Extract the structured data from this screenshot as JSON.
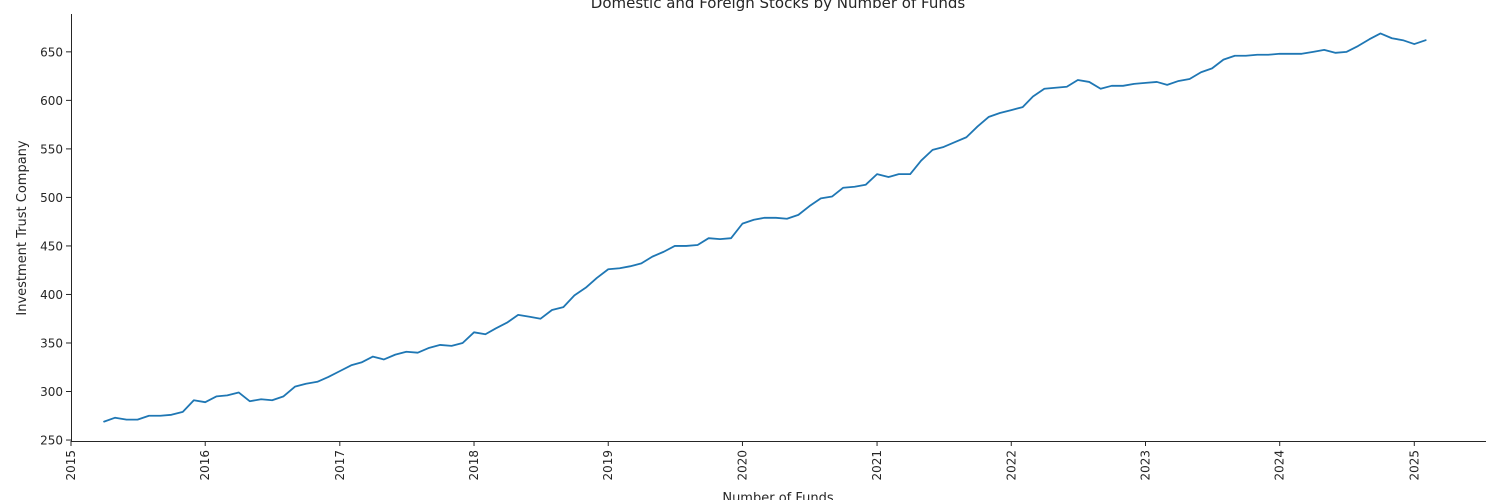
{
  "chart_data": {
    "type": "line",
    "title": "Domestic and Foreign Stocks by Number of Funds",
    "xlabel": "Number of Funds",
    "ylabel": "Investment Trust Company",
    "xlim": [
      "2015-01-01",
      "2025-07-15"
    ],
    "ylim": [
      249,
      689
    ],
    "x_ticks": [
      "2015-01-01",
      "2016-01-01",
      "2017-01-01",
      "2018-01-01",
      "2019-01-01",
      "2020-01-01",
      "2021-01-01",
      "2022-01-01",
      "2023-01-01",
      "2024-01-01",
      "2025-01-01"
    ],
    "x_tick_labels": [
      "2015",
      "2016",
      "2017",
      "2018",
      "2019",
      "2020",
      "2021",
      "2022",
      "2023",
      "2024",
      "2025"
    ],
    "y_ticks": [
      250,
      300,
      350,
      400,
      450,
      500,
      550,
      600,
      650
    ],
    "y_tick_labels": [
      "250",
      "300",
      "350",
      "400",
      "450",
      "500",
      "550",
      "600",
      "650"
    ],
    "grid": false,
    "legend": "none",
    "line_color": "#1f77b4",
    "series": [
      {
        "x": [
          "2015-04-01",
          "2015-05-01",
          "2015-06-01",
          "2015-07-01",
          "2015-08-01",
          "2015-09-01",
          "2015-10-01",
          "2015-11-01",
          "2015-12-01",
          "2016-01-01",
          "2016-02-01",
          "2016-03-01",
          "2016-04-01",
          "2016-05-01",
          "2016-06-01",
          "2016-07-01",
          "2016-08-01",
          "2016-09-01",
          "2016-10-01",
          "2016-11-01",
          "2016-12-01",
          "2017-01-01",
          "2017-02-01",
          "2017-03-01",
          "2017-04-01",
          "2017-05-01",
          "2017-06-01",
          "2017-07-01",
          "2017-08-01",
          "2017-09-01",
          "2017-10-01",
          "2017-11-01",
          "2017-12-01",
          "2018-01-01",
          "2018-02-01",
          "2018-03-01",
          "2018-04-01",
          "2018-05-01",
          "2018-06-01",
          "2018-07-01",
          "2018-08-01",
          "2018-09-01",
          "2018-10-01",
          "2018-11-01",
          "2018-12-01",
          "2019-01-01",
          "2019-02-01",
          "2019-03-01",
          "2019-04-01",
          "2019-05-01",
          "2019-06-01",
          "2019-07-01",
          "2019-08-01",
          "2019-09-01",
          "2019-10-01",
          "2019-11-01",
          "2019-12-01",
          "2020-01-01",
          "2020-02-01",
          "2020-03-01",
          "2020-04-01",
          "2020-05-01",
          "2020-06-01",
          "2020-07-01",
          "2020-08-01",
          "2020-09-01",
          "2020-10-01",
          "2020-11-01",
          "2020-12-01",
          "2021-01-01",
          "2021-02-01",
          "2021-03-01",
          "2021-04-01",
          "2021-05-01",
          "2021-06-01",
          "2021-07-01",
          "2021-08-01",
          "2021-09-01",
          "2021-10-01",
          "2021-11-01",
          "2021-12-01",
          "2022-01-01",
          "2022-02-01",
          "2022-03-01",
          "2022-04-01",
          "2022-05-01",
          "2022-06-01",
          "2022-07-01",
          "2022-08-01",
          "2022-09-01",
          "2022-10-01",
          "2022-11-01",
          "2022-12-01",
          "2023-01-01",
          "2023-02-01",
          "2023-03-01",
          "2023-04-01",
          "2023-05-01",
          "2023-06-01",
          "2023-07-01",
          "2023-08-01",
          "2023-09-01",
          "2023-10-01",
          "2023-11-01",
          "2023-12-01",
          "2024-01-01",
          "2024-02-01",
          "2024-03-01",
          "2024-04-01",
          "2024-05-01",
          "2024-06-01",
          "2024-07-01",
          "2024-08-01",
          "2024-09-01",
          "2024-10-01",
          "2024-11-01",
          "2024-12-01",
          "2025-01-01",
          "2025-02-01"
        ],
        "values": [
          269,
          273,
          271,
          271,
          275,
          275,
          276,
          279,
          291,
          289,
          295,
          296,
          299,
          290,
          292,
          291,
          295,
          305,
          308,
          310,
          315,
          321,
          327,
          330,
          336,
          333,
          338,
          341,
          340,
          345,
          348,
          347,
          350,
          361,
          359,
          365,
          371,
          379,
          377,
          375,
          384,
          387,
          399,
          407,
          417,
          426,
          427,
          429,
          432,
          439,
          444,
          450,
          450,
          451,
          458,
          457,
          458,
          473,
          477,
          479,
          479,
          478,
          482,
          491,
          499,
          501,
          510,
          511,
          513,
          524,
          521,
          524,
          524,
          538,
          549,
          552,
          557,
          562,
          573,
          583,
          587,
          590,
          593,
          604,
          612,
          613,
          614,
          621,
          619,
          612,
          615,
          615,
          617,
          618,
          619,
          616,
          620,
          622,
          629,
          633,
          642,
          646,
          646,
          647,
          647,
          648,
          648,
          648,
          650,
          652,
          649,
          650,
          656,
          663,
          669,
          664,
          662,
          658,
          662
        ]
      }
    ]
  }
}
